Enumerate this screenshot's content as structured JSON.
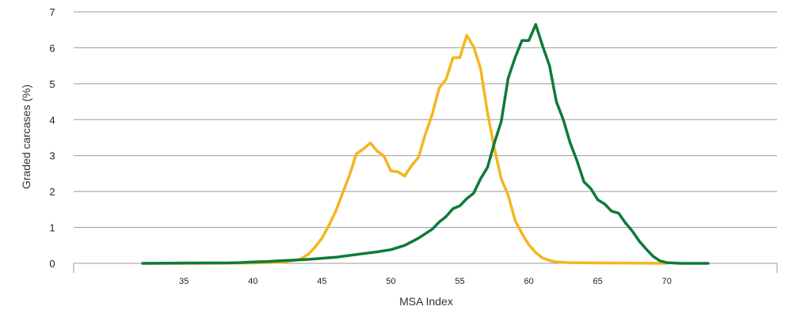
{
  "chart_data": {
    "type": "line",
    "title": "",
    "xlabel": "MSA Index",
    "ylabel": "Graded carcases (%)",
    "xlim": [
      27,
      78
    ],
    "ylim": [
      0,
      7
    ],
    "grid": "horizontal",
    "x_ticks": [
      35,
      40,
      45,
      50,
      55,
      60,
      65,
      70
    ],
    "y_ticks": [
      0,
      1,
      2,
      3,
      4,
      5,
      6,
      7
    ],
    "series": [
      {
        "color": "#F5B521",
        "points": [
          [
            32,
            0
          ],
          [
            36,
            0
          ],
          [
            40,
            0.01
          ],
          [
            42,
            0.03
          ],
          [
            43,
            0.08
          ],
          [
            43.5,
            0.13
          ],
          [
            44,
            0.25
          ],
          [
            44.5,
            0.45
          ],
          [
            45,
            0.7
          ],
          [
            45.5,
            1.05
          ],
          [
            46,
            1.45
          ],
          [
            46.5,
            1.95
          ],
          [
            47,
            2.45
          ],
          [
            47.5,
            3.05
          ],
          [
            48,
            3.18
          ],
          [
            48.5,
            3.35
          ],
          [
            49,
            3.13
          ],
          [
            49.5,
            2.98
          ],
          [
            50,
            2.57
          ],
          [
            50.5,
            2.55
          ],
          [
            51,
            2.43
          ],
          [
            51.5,
            2.72
          ],
          [
            52,
            2.95
          ],
          [
            52.5,
            3.6
          ],
          [
            53,
            4.15
          ],
          [
            53.5,
            4.88
          ],
          [
            54,
            5.12
          ],
          [
            54.5,
            5.72
          ],
          [
            55,
            5.73
          ],
          [
            55.5,
            6.35
          ],
          [
            56,
            6.03
          ],
          [
            56.5,
            5.43
          ],
          [
            57,
            4.2
          ],
          [
            57.5,
            3.2
          ],
          [
            58,
            2.35
          ],
          [
            58.5,
            1.9
          ],
          [
            59,
            1.2
          ],
          [
            59.5,
            0.83
          ],
          [
            60,
            0.52
          ],
          [
            60.5,
            0.3
          ],
          [
            61,
            0.15
          ],
          [
            61.5,
            0.08
          ],
          [
            62,
            0.04
          ],
          [
            63,
            0.02
          ],
          [
            65,
            0.01
          ],
          [
            70,
            0
          ]
        ]
      },
      {
        "color": "#0E7A3A",
        "points": [
          [
            32,
            0
          ],
          [
            36,
            0.01
          ],
          [
            38,
            0.01
          ],
          [
            39,
            0.02
          ],
          [
            40,
            0.04
          ],
          [
            41,
            0.05
          ],
          [
            42,
            0.07
          ],
          [
            43,
            0.09
          ],
          [
            44,
            0.11
          ],
          [
            45,
            0.14
          ],
          [
            46,
            0.17
          ],
          [
            47,
            0.22
          ],
          [
            48,
            0.27
          ],
          [
            49,
            0.32
          ],
          [
            50,
            0.38
          ],
          [
            51,
            0.5
          ],
          [
            52,
            0.7
          ],
          [
            53,
            0.95
          ],
          [
            53.5,
            1.15
          ],
          [
            54,
            1.3
          ],
          [
            54.5,
            1.52
          ],
          [
            55,
            1.6
          ],
          [
            55.5,
            1.8
          ],
          [
            56,
            1.95
          ],
          [
            56.5,
            2.35
          ],
          [
            57,
            2.67
          ],
          [
            57.5,
            3.35
          ],
          [
            58,
            3.95
          ],
          [
            58.5,
            5.15
          ],
          [
            59,
            5.72
          ],
          [
            59.5,
            6.2
          ],
          [
            60,
            6.2
          ],
          [
            60.5,
            6.65
          ],
          [
            61,
            6.05
          ],
          [
            61.5,
            5.5
          ],
          [
            62,
            4.5
          ],
          [
            62.5,
            4.0
          ],
          [
            63,
            3.35
          ],
          [
            63.5,
            2.85
          ],
          [
            64,
            2.27
          ],
          [
            64.5,
            2.08
          ],
          [
            65,
            1.77
          ],
          [
            65.5,
            1.65
          ],
          [
            66,
            1.45
          ],
          [
            66.5,
            1.4
          ],
          [
            67,
            1.13
          ],
          [
            67.5,
            0.9
          ],
          [
            68,
            0.62
          ],
          [
            68.5,
            0.4
          ],
          [
            69,
            0.2
          ],
          [
            69.5,
            0.07
          ],
          [
            70,
            0.02
          ],
          [
            71,
            0
          ],
          [
            73,
            0
          ]
        ]
      }
    ]
  }
}
